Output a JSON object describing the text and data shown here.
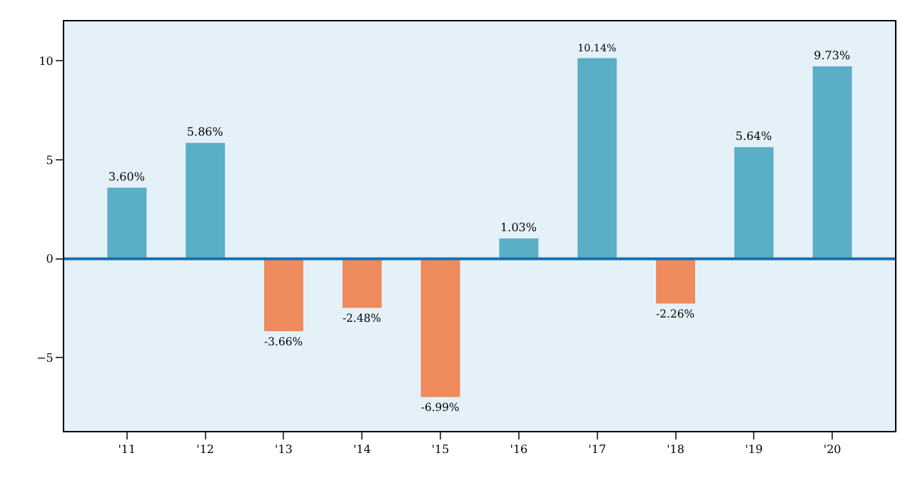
{
  "chart_data": {
    "type": "bar",
    "categories": [
      "'11",
      "'12",
      "'13",
      "'14",
      "'15",
      "'16",
      "'17",
      "'18",
      "'19",
      "'20"
    ],
    "values": [
      3.6,
      5.86,
      -3.66,
      -2.48,
      -6.99,
      1.03,
      10.14,
      -2.26,
      5.64,
      9.73
    ],
    "colors": [
      "#5aaec6",
      "#5aaec6",
      "#ef8a5c",
      "#ef8a5c",
      "#ef8a5c",
      "#5aaec6",
      "#5aaec6",
      "#ef8a5c",
      "#5aaec6",
      "#5aaec6"
    ],
    "value_labels": [
      "3.60%",
      "5.86%",
      "-3.66%",
      "-2.48%",
      "-6.99%",
      "1.03%",
      "10.14%",
      "-2.26%",
      "5.64%",
      "9.73%"
    ],
    "ylim": [
      -8.7,
      12
    ],
    "yticks": [
      {
        "value": -5,
        "label": "−5"
      },
      0,
      5,
      10
    ],
    "ref_lines": [
      {
        "axis": "y",
        "value": 0,
        "color": "#1a6fb0",
        "line_style": "solid"
      }
    ],
    "grid": false,
    "legend": false
  }
}
